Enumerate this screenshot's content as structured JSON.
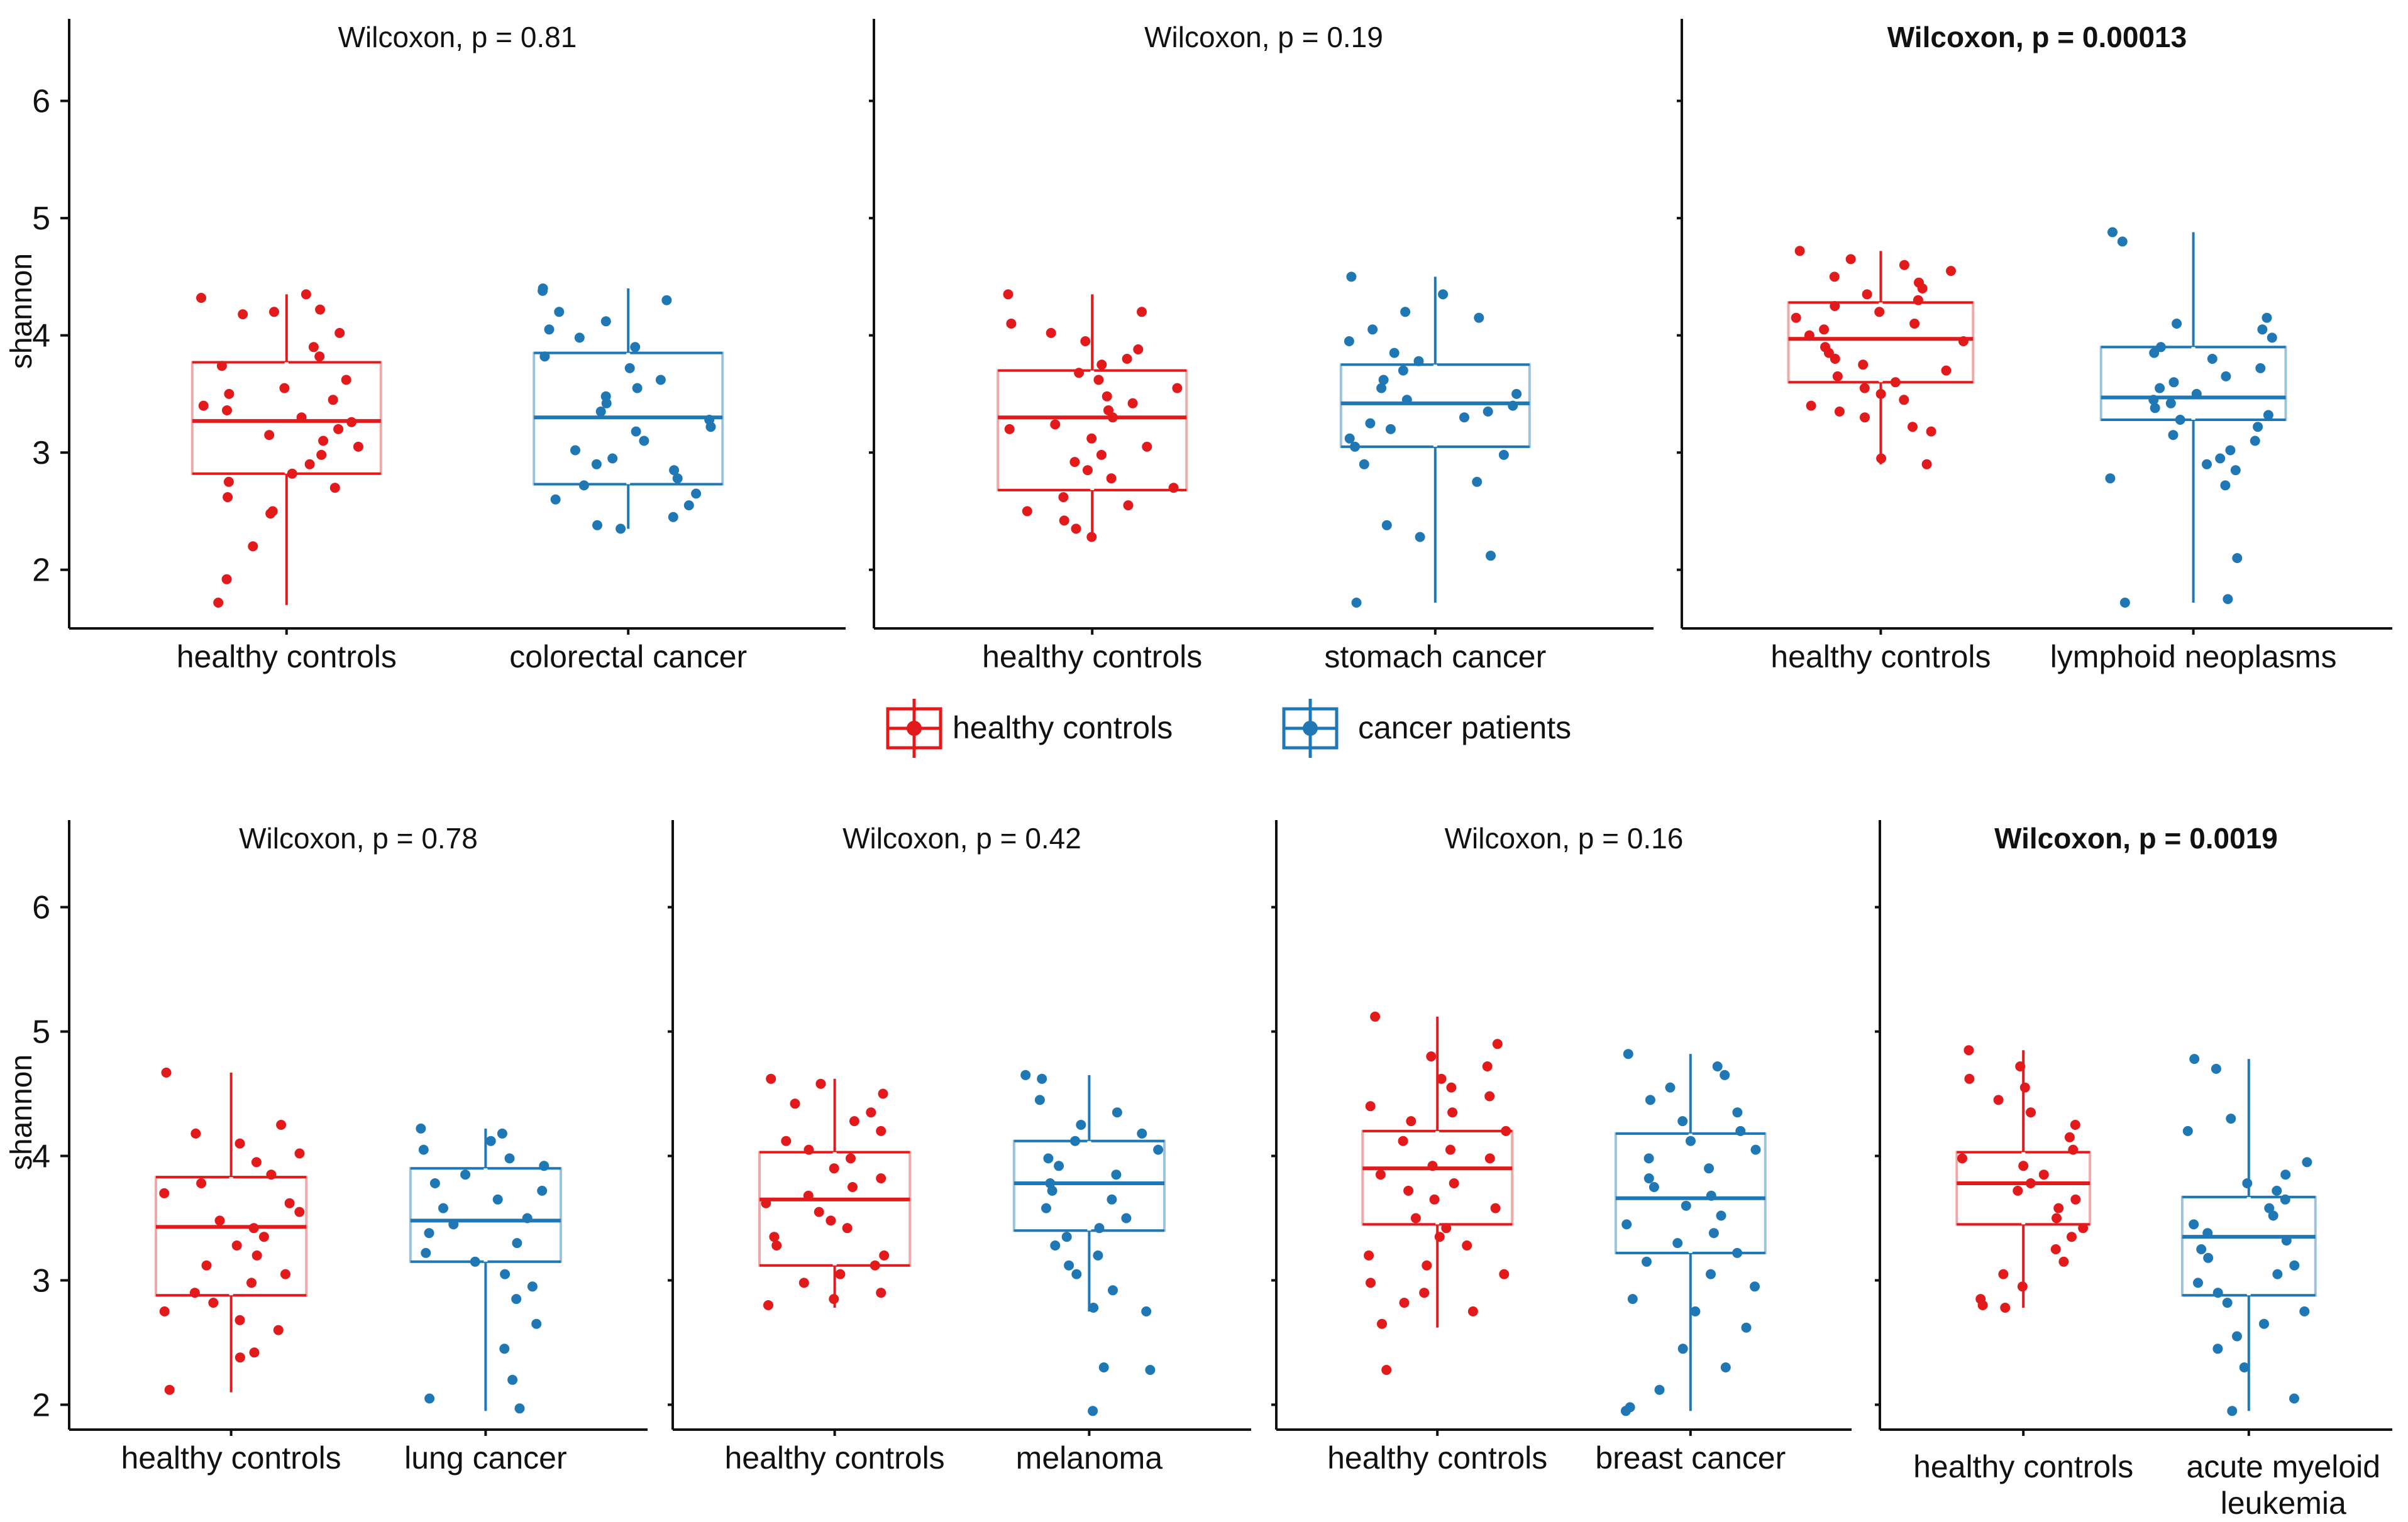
{
  "figure": {
    "legend": {
      "items": [
        {
          "label": "healthy controls",
          "color": "#E31A1C"
        },
        {
          "label": "cancer patients",
          "color": "#1F78B4"
        }
      ]
    }
  },
  "chart_data": [
    {
      "type": "box",
      "title": "Wilcoxon, p = 0.81",
      "title_bold": false,
      "ylabel": "shannon",
      "ylim": [
        1.5,
        6.7
      ],
      "yticks": [
        2,
        3,
        4,
        5,
        6
      ],
      "categories": [
        "healthy controls",
        "colorectal cancer"
      ],
      "series": [
        {
          "name": "healthy controls",
          "color": "#E31A1C",
          "min": 1.7,
          "q1": 2.82,
          "median": 3.27,
          "q3": 3.77,
          "max": 4.35,
          "points": [
            4.32,
            4.18,
            4.2,
            4.35,
            4.22,
            4.02,
            3.9,
            3.82,
            3.74,
            3.62,
            3.55,
            3.5,
            3.45,
            3.4,
            3.36,
            3.3,
            3.26,
            3.2,
            3.15,
            3.1,
            3.05,
            2.98,
            2.9,
            2.82,
            2.75,
            2.7,
            2.62,
            2.5,
            2.48,
            2.2,
            1.92,
            1.72
          ]
        },
        {
          "name": "colorectal cancer",
          "color": "#1F78B4",
          "min": 2.35,
          "q1": 2.73,
          "median": 3.3,
          "q3": 3.85,
          "max": 4.4,
          "points": [
            4.4,
            4.38,
            4.3,
            4.2,
            4.12,
            4.05,
            3.98,
            3.9,
            3.82,
            3.72,
            3.62,
            3.55,
            3.48,
            3.42,
            3.35,
            3.28,
            3.22,
            3.18,
            3.1,
            3.02,
            2.95,
            2.9,
            2.85,
            2.78,
            2.72,
            2.65,
            2.6,
            2.55,
            2.45,
            2.38,
            2.35
          ]
        }
      ]
    },
    {
      "type": "box",
      "title": "Wilcoxon, p = 0.19",
      "title_bold": false,
      "ylabel": "",
      "ylim": [
        1.5,
        6.7
      ],
      "yticks": [
        2,
        3,
        4,
        5,
        6
      ],
      "categories": [
        "healthy controls",
        "stomach cancer"
      ],
      "series": [
        {
          "name": "healthy controls",
          "color": "#E31A1C",
          "min": 2.25,
          "q1": 2.68,
          "median": 3.3,
          "q3": 3.7,
          "max": 4.35,
          "points": [
            4.35,
            4.2,
            4.1,
            4.02,
            3.95,
            3.88,
            3.8,
            3.75,
            3.68,
            3.62,
            3.55,
            3.48,
            3.42,
            3.36,
            3.3,
            3.24,
            3.2,
            3.12,
            3.05,
            2.98,
            2.92,
            2.85,
            2.78,
            2.7,
            2.62,
            2.55,
            2.5,
            2.42,
            2.35,
            2.28
          ]
        },
        {
          "name": "stomach cancer",
          "color": "#1F78B4",
          "min": 1.72,
          "q1": 3.05,
          "median": 3.42,
          "q3": 3.75,
          "max": 4.5,
          "points": [
            4.5,
            4.35,
            4.2,
            4.15,
            4.05,
            3.95,
            3.85,
            3.78,
            3.7,
            3.62,
            3.55,
            3.5,
            3.45,
            3.4,
            3.35,
            3.3,
            3.25,
            3.2,
            3.12,
            3.05,
            2.98,
            2.9,
            2.75,
            2.38,
            2.28,
            2.12,
            1.72
          ]
        }
      ]
    },
    {
      "type": "box",
      "title": "Wilcoxon, p = 0.00013",
      "title_bold": true,
      "ylabel": "",
      "ylim": [
        1.5,
        6.7
      ],
      "yticks": [
        2,
        3,
        4,
        5,
        6
      ],
      "categories": [
        "healthy controls",
        "lymphoid neoplasms"
      ],
      "series": [
        {
          "name": "healthy controls",
          "color": "#E31A1C",
          "min": 2.9,
          "q1": 3.6,
          "median": 3.97,
          "q3": 4.28,
          "max": 4.72,
          "points": [
            4.72,
            4.65,
            4.6,
            4.55,
            4.5,
            4.45,
            4.4,
            4.35,
            4.3,
            4.25,
            4.2,
            4.15,
            4.1,
            4.05,
            4.0,
            3.95,
            3.9,
            3.85,
            3.8,
            3.75,
            3.7,
            3.65,
            3.6,
            3.55,
            3.5,
            3.45,
            3.4,
            3.35,
            3.3,
            3.22,
            3.18,
            2.95,
            2.9
          ]
        },
        {
          "name": "lymphoid neoplasms",
          "color": "#1F78B4",
          "min": 1.72,
          "q1": 3.28,
          "median": 3.47,
          "q3": 3.9,
          "max": 4.88,
          "points": [
            4.88,
            4.8,
            4.15,
            4.1,
            4.05,
            3.98,
            3.9,
            3.85,
            3.8,
            3.72,
            3.65,
            3.6,
            3.55,
            3.5,
            3.45,
            3.42,
            3.38,
            3.32,
            3.28,
            3.22,
            3.15,
            3.1,
            3.02,
            2.95,
            2.9,
            2.85,
            2.78,
            2.72,
            2.1,
            1.75,
            1.72
          ]
        }
      ]
    },
    {
      "type": "box",
      "title": "Wilcoxon, p = 0.78",
      "title_bold": false,
      "ylabel": "shannon",
      "ylim": [
        1.8,
        6.7
      ],
      "yticks": [
        2,
        3,
        4,
        5,
        6
      ],
      "categories": [
        "healthy controls",
        "lung cancer"
      ],
      "series": [
        {
          "name": "healthy controls",
          "color": "#E31A1C",
          "min": 2.1,
          "q1": 2.88,
          "median": 3.43,
          "q3": 3.83,
          "max": 4.67,
          "points": [
            4.67,
            4.25,
            4.18,
            4.1,
            4.02,
            3.95,
            3.85,
            3.78,
            3.7,
            3.62,
            3.55,
            3.48,
            3.42,
            3.35,
            3.28,
            3.2,
            3.12,
            3.05,
            2.98,
            2.9,
            2.82,
            2.75,
            2.68,
            2.6,
            2.42,
            2.38,
            2.12
          ]
        },
        {
          "name": "lung cancer",
          "color": "#1F78B4",
          "min": 1.95,
          "q1": 3.15,
          "median": 3.48,
          "q3": 3.9,
          "max": 4.22,
          "points": [
            4.22,
            4.18,
            4.12,
            4.05,
            3.98,
            3.92,
            3.85,
            3.78,
            3.72,
            3.65,
            3.58,
            3.5,
            3.45,
            3.38,
            3.3,
            3.22,
            3.15,
            3.05,
            2.95,
            2.85,
            2.65,
            2.45,
            2.2,
            2.05,
            1.97
          ]
        }
      ]
    },
    {
      "type": "box",
      "title": "Wilcoxon, p = 0.42",
      "title_bold": false,
      "ylabel": "",
      "ylim": [
        1.8,
        6.7
      ],
      "yticks": [
        2,
        3,
        4,
        5,
        6
      ],
      "categories": [
        "healthy controls",
        "melanoma"
      ],
      "series": [
        {
          "name": "healthy controls",
          "color": "#E31A1C",
          "min": 2.78,
          "q1": 3.12,
          "median": 3.65,
          "q3": 4.03,
          "max": 4.62,
          "points": [
            4.62,
            4.58,
            4.5,
            4.42,
            4.35,
            4.28,
            4.2,
            4.12,
            4.05,
            3.98,
            3.9,
            3.82,
            3.75,
            3.68,
            3.62,
            3.55,
            3.48,
            3.42,
            3.35,
            3.28,
            3.2,
            3.12,
            3.05,
            2.98,
            2.9,
            2.85,
            2.8
          ]
        },
        {
          "name": "melanoma",
          "color": "#1F78B4",
          "min": 2.75,
          "q1": 3.4,
          "median": 3.78,
          "q3": 4.12,
          "max": 4.65,
          "points": [
            4.65,
            4.62,
            4.45,
            4.35,
            4.25,
            4.18,
            4.12,
            4.05,
            3.98,
            3.92,
            3.85,
            3.78,
            3.72,
            3.65,
            3.58,
            3.5,
            3.42,
            3.35,
            3.28,
            3.2,
            3.12,
            3.05,
            2.92,
            2.78,
            2.75,
            2.3,
            2.28,
            1.95
          ]
        }
      ]
    },
    {
      "type": "box",
      "title": "Wilcoxon, p = 0.16",
      "title_bold": false,
      "ylabel": "",
      "ylim": [
        1.8,
        6.7
      ],
      "yticks": [
        2,
        3,
        4,
        5,
        6
      ],
      "categories": [
        "healthy controls",
        "breast cancer"
      ],
      "series": [
        {
          "name": "healthy controls",
          "color": "#E31A1C",
          "min": 2.62,
          "q1": 3.45,
          "median": 3.9,
          "q3": 4.2,
          "max": 5.12,
          "points": [
            5.12,
            4.9,
            4.8,
            4.72,
            4.62,
            4.55,
            4.48,
            4.4,
            4.35,
            4.28,
            4.2,
            4.12,
            4.05,
            3.98,
            3.92,
            3.85,
            3.78,
            3.72,
            3.65,
            3.58,
            3.5,
            3.42,
            3.35,
            3.28,
            3.2,
            3.12,
            3.05,
            2.98,
            2.9,
            2.82,
            2.75,
            2.65,
            2.28
          ]
        },
        {
          "name": "breast cancer",
          "color": "#1F78B4",
          "min": 1.95,
          "q1": 3.22,
          "median": 3.66,
          "q3": 4.18,
          "max": 4.82,
          "points": [
            4.82,
            4.72,
            4.65,
            4.55,
            4.45,
            4.35,
            4.28,
            4.2,
            4.12,
            4.05,
            3.98,
            3.9,
            3.82,
            3.75,
            3.68,
            3.6,
            3.52,
            3.45,
            3.38,
            3.3,
            3.22,
            3.15,
            3.05,
            2.95,
            2.85,
            2.75,
            2.62,
            2.45,
            2.3,
            2.12,
            1.98,
            1.95
          ]
        }
      ]
    },
    {
      "type": "box",
      "title": "Wilcoxon, p = 0.0019",
      "title_bold": true,
      "ylabel": "",
      "ylim": [
        1.8,
        6.7
      ],
      "yticks": [
        2,
        3,
        4,
        5,
        6
      ],
      "categories": [
        "healthy controls",
        "acute myeloid leukemia"
      ],
      "series": [
        {
          "name": "healthy controls",
          "color": "#E31A1C",
          "min": 2.78,
          "q1": 3.45,
          "median": 3.78,
          "q3": 4.03,
          "max": 4.85,
          "points": [
            4.85,
            4.72,
            4.62,
            4.55,
            4.45,
            4.35,
            4.25,
            4.15,
            4.05,
            3.98,
            3.92,
            3.85,
            3.78,
            3.72,
            3.65,
            3.58,
            3.5,
            3.42,
            3.35,
            3.25,
            3.15,
            3.05,
            2.95,
            2.85,
            2.8,
            2.78
          ]
        },
        {
          "name": "acute myeloid leukemia",
          "color": "#1F78B4",
          "min": 1.95,
          "q1": 2.88,
          "median": 3.35,
          "q3": 3.67,
          "max": 4.78,
          "points": [
            4.78,
            4.7,
            4.3,
            4.2,
            3.95,
            3.85,
            3.78,
            3.72,
            3.65,
            3.58,
            3.52,
            3.45,
            3.38,
            3.32,
            3.25,
            3.18,
            3.12,
            3.05,
            2.98,
            2.9,
            2.82,
            2.75,
            2.65,
            2.55,
            2.45,
            2.3,
            2.05,
            1.95
          ]
        }
      ]
    }
  ]
}
